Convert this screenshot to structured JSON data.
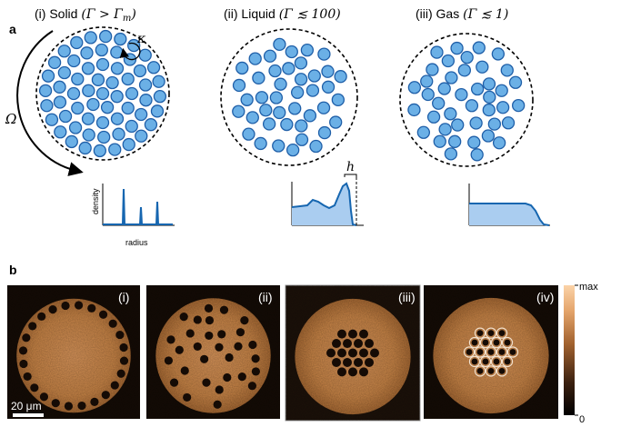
{
  "panel_a": {
    "label": "a",
    "titles": [
      {
        "prefix": "(i) Solid ",
        "math": "(Γ > Γ",
        "sub": "m",
        "close": ")"
      },
      {
        "prefix": "(ii) Liquid ",
        "math": "(Γ ≲ 100)",
        "sub": "",
        "close": ""
      },
      {
        "prefix": "(iii) Gas ",
        "math": "(Γ ≲ 1)",
        "sub": "",
        "close": ""
      }
    ],
    "omega_label": "Ω",
    "kappa_label": "κ",
    "h_label": "h",
    "density_axis_label": "density",
    "radius_axis_label": "radius"
  },
  "panel_b": {
    "label": "b",
    "images": [
      {
        "tag": "(i)"
      },
      {
        "tag": "(ii)"
      },
      {
        "tag": "(iii)"
      },
      {
        "tag": "(iv)"
      }
    ],
    "scale_bar_label": "20 μm",
    "colorbar_max": "max",
    "colorbar_min": "0"
  },
  "colors": {
    "particle_fill": "#6bb0e6",
    "particle_stroke": "#1f5fa8",
    "profile_fill": "#aacdf0",
    "profile_line": "#1666b0",
    "image_bright": "#e8a868",
    "image_dark": "#1a1009"
  }
}
